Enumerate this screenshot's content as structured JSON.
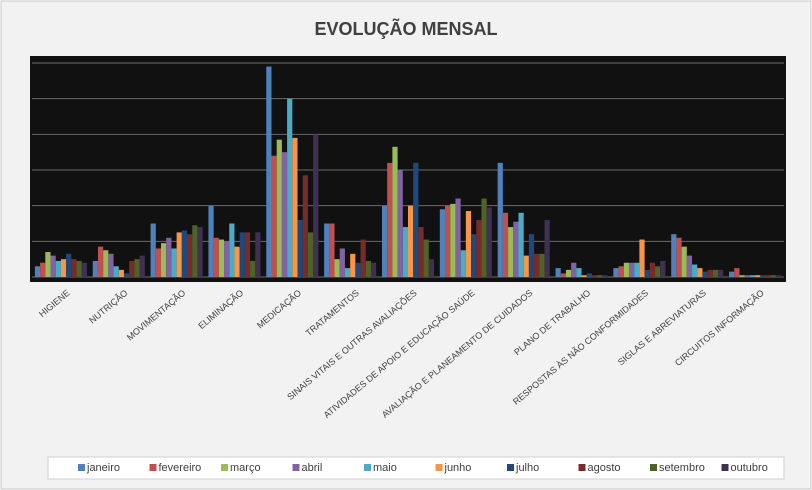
{
  "chart_data": {
    "type": "bar",
    "title": "EVOLUÇÃO MENSAL",
    "categories": [
      "HIGIENE",
      "NUTRIÇÃO",
      "MOVIMENTAÇÃO",
      "ELIMINAÇÃO",
      "MEDICAÇÃO",
      "TRATAMENTOS",
      "SINAIS VITAIS E OUTRAS AVALIAÇÕES",
      "ATIVIDADES DE APOIO E EDUCAÇÃO SAÚDE",
      "AVALIAÇÃO E PLANEAMENTO DE CUIDADOS",
      "PLANO DE TRABALHO",
      "RESPOSTAS ÀS NÃO CONFORMIDADES",
      "SIGLAS E ABREVIATURAS",
      "CIRCUITOS INFORMAÇÃO"
    ],
    "series": [
      {
        "name": "janeiro",
        "color": "#4f81bd",
        "values": [
          0.3,
          0.45,
          1.5,
          2.0,
          5.9,
          1.5,
          2.0,
          1.9,
          3.2,
          0.25,
          0.25,
          1.2,
          0.15
        ]
      },
      {
        "name": "fevereiro",
        "color": "#c0504d",
        "values": [
          0.4,
          0.85,
          0.8,
          1.1,
          3.4,
          1.5,
          3.2,
          2.0,
          1.8,
          0.1,
          0.3,
          1.1,
          0.25
        ]
      },
      {
        "name": "março",
        "color": "#9bbb59",
        "values": [
          0.7,
          0.75,
          0.95,
          1.05,
          3.85,
          0.5,
          3.65,
          2.05,
          1.4,
          0.2,
          0.4,
          0.85,
          0.05
        ]
      },
      {
        "name": "abril",
        "color": "#8064a2",
        "values": [
          0.6,
          0.65,
          1.1,
          1.0,
          3.5,
          0.8,
          3.0,
          2.2,
          1.55,
          0.4,
          0.4,
          0.6,
          0.05
        ]
      },
      {
        "name": "maio",
        "color": "#4bacc6",
        "values": [
          0.45,
          0.3,
          0.8,
          1.5,
          5.0,
          0.25,
          1.4,
          0.75,
          1.8,
          0.25,
          0.4,
          0.35,
          0.05
        ]
      },
      {
        "name": "junho",
        "color": "#f79646",
        "values": [
          0.5,
          0.2,
          1.25,
          0.85,
          3.9,
          0.65,
          2.0,
          1.85,
          0.6,
          0.05,
          1.05,
          0.25,
          0.05
        ]
      },
      {
        "name": "julho",
        "color": "#1f497d",
        "values": [
          0.65,
          0.1,
          1.3,
          1.25,
          1.6,
          0.4,
          3.2,
          1.2,
          1.2,
          0.1,
          0.2,
          0.15,
          0.05
        ]
      },
      {
        "name": "agosto",
        "color": "#772c2a",
        "values": [
          0.5,
          0.45,
          1.2,
          1.25,
          2.85,
          1.05,
          1.4,
          1.6,
          0.65,
          0.05,
          0.4,
          0.2,
          0.05
        ]
      },
      {
        "name": "setembro",
        "color": "#4f6228",
        "values": [
          0.45,
          0.5,
          1.45,
          0.45,
          1.25,
          0.45,
          1.05,
          2.2,
          0.65,
          0.05,
          0.3,
          0.2,
          0.05
        ]
      },
      {
        "name": "outubro",
        "color": "#403152",
        "values": [
          0.4,
          0.6,
          1.4,
          1.25,
          4.0,
          0.4,
          0.5,
          1.95,
          1.6,
          0.05,
          0.45,
          0.2,
          0.05
        ]
      }
    ],
    "ylim": [
      0,
      6
    ],
    "yticks": [
      0,
      1,
      2,
      3,
      4,
      5,
      6
    ],
    "grid": true,
    "legend": "bottom"
  }
}
